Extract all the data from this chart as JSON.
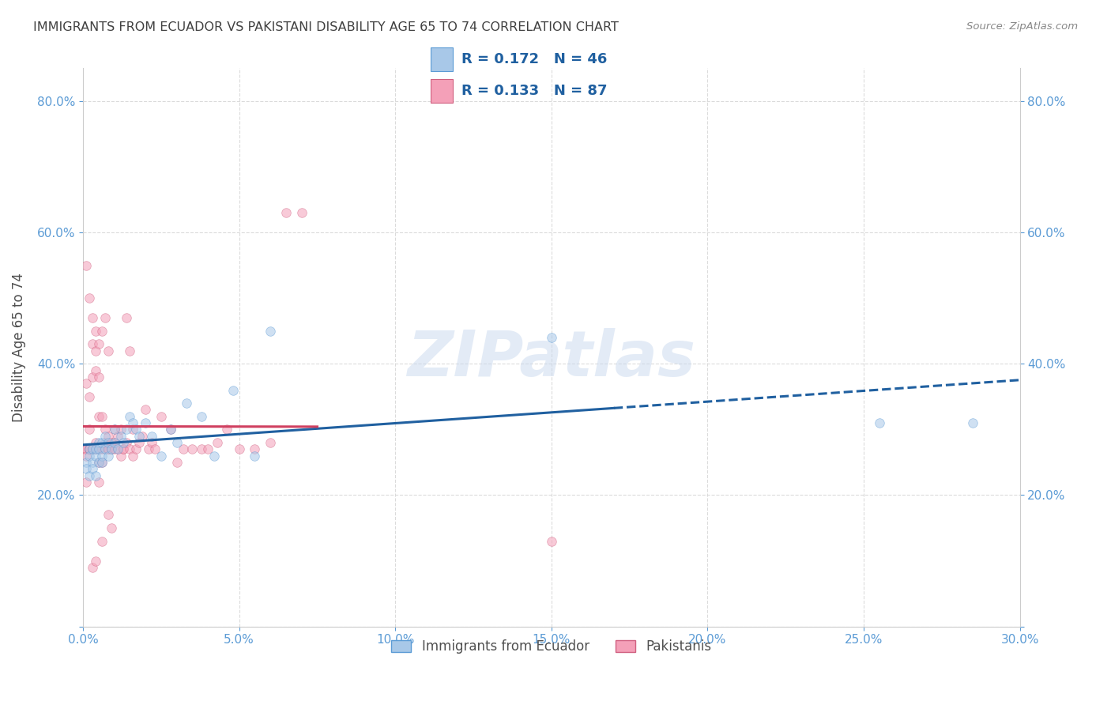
{
  "title": "IMMIGRANTS FROM ECUADOR VS PAKISTANI DISABILITY AGE 65 TO 74 CORRELATION CHART",
  "source": "Source: ZipAtlas.com",
  "ylabel": "Disability Age 65 to 74",
  "xlim": [
    0.0,
    0.3
  ],
  "ylim": [
    0.0,
    0.85
  ],
  "xticks": [
    0.0,
    0.05,
    0.1,
    0.15,
    0.2,
    0.25,
    0.3
  ],
  "yticks": [
    0.0,
    0.2,
    0.4,
    0.6,
    0.8
  ],
  "ecuador_color": "#a8c8e8",
  "pakistan_color": "#f4a0b8",
  "ecuador_edge": "#5b9bd5",
  "pakistan_edge": "#d06080",
  "trend_ecuador_color": "#2060a0",
  "trend_pakistan_color": "#d04060",
  "background_color": "#ffffff",
  "grid_color": "#d8d8d8",
  "title_color": "#404040",
  "axis_label_color": "#505050",
  "tick_color": "#5b9bd5",
  "legend_text_color": "#2060a0",
  "marker_size": 70,
  "marker_alpha": 0.55,
  "watermark_text": "ZIPatlas",
  "watermark_color": "#c8d8ee",
  "ecuador_x": [
    0.001,
    0.001,
    0.002,
    0.002,
    0.002,
    0.003,
    0.003,
    0.003,
    0.004,
    0.004,
    0.004,
    0.005,
    0.005,
    0.005,
    0.006,
    0.006,
    0.006,
    0.007,
    0.007,
    0.008,
    0.008,
    0.009,
    0.01,
    0.01,
    0.011,
    0.012,
    0.013,
    0.014,
    0.015,
    0.016,
    0.017,
    0.018,
    0.02,
    0.022,
    0.025,
    0.028,
    0.03,
    0.033,
    0.038,
    0.042,
    0.048,
    0.055,
    0.06,
    0.15,
    0.255,
    0.285
  ],
  "ecuador_y": [
    0.25,
    0.24,
    0.27,
    0.23,
    0.26,
    0.25,
    0.27,
    0.24,
    0.26,
    0.23,
    0.27,
    0.28,
    0.25,
    0.27,
    0.26,
    0.28,
    0.25,
    0.29,
    0.27,
    0.28,
    0.26,
    0.27,
    0.28,
    0.3,
    0.27,
    0.29,
    0.28,
    0.3,
    0.32,
    0.31,
    0.3,
    0.29,
    0.31,
    0.29,
    0.26,
    0.3,
    0.28,
    0.34,
    0.32,
    0.26,
    0.36,
    0.26,
    0.45,
    0.44,
    0.31,
    0.31
  ],
  "pakistan_x": [
    0.0005,
    0.001,
    0.001,
    0.001,
    0.001,
    0.001,
    0.002,
    0.002,
    0.002,
    0.002,
    0.002,
    0.002,
    0.003,
    0.003,
    0.003,
    0.003,
    0.003,
    0.003,
    0.004,
    0.004,
    0.004,
    0.004,
    0.004,
    0.005,
    0.005,
    0.005,
    0.005,
    0.005,
    0.005,
    0.006,
    0.006,
    0.006,
    0.006,
    0.007,
    0.007,
    0.007,
    0.007,
    0.008,
    0.008,
    0.008,
    0.008,
    0.009,
    0.009,
    0.009,
    0.01,
    0.01,
    0.01,
    0.011,
    0.011,
    0.012,
    0.012,
    0.013,
    0.013,
    0.014,
    0.014,
    0.015,
    0.015,
    0.016,
    0.016,
    0.017,
    0.018,
    0.019,
    0.02,
    0.021,
    0.022,
    0.023,
    0.025,
    0.028,
    0.03,
    0.032,
    0.035,
    0.038,
    0.04,
    0.043,
    0.046,
    0.05,
    0.055,
    0.06,
    0.065,
    0.07,
    0.003,
    0.004,
    0.005,
    0.006,
    0.008,
    0.009,
    0.15
  ],
  "pakistan_y": [
    0.27,
    0.27,
    0.55,
    0.37,
    0.26,
    0.22,
    0.27,
    0.5,
    0.27,
    0.35,
    0.27,
    0.3,
    0.47,
    0.27,
    0.43,
    0.27,
    0.38,
    0.27,
    0.45,
    0.42,
    0.27,
    0.28,
    0.39,
    0.43,
    0.38,
    0.27,
    0.32,
    0.25,
    0.27,
    0.32,
    0.25,
    0.27,
    0.45,
    0.3,
    0.47,
    0.27,
    0.28,
    0.29,
    0.27,
    0.42,
    0.27,
    0.27,
    0.28,
    0.27,
    0.3,
    0.27,
    0.28,
    0.29,
    0.27,
    0.26,
    0.3,
    0.27,
    0.27,
    0.28,
    0.47,
    0.42,
    0.27,
    0.26,
    0.3,
    0.27,
    0.28,
    0.29,
    0.33,
    0.27,
    0.28,
    0.27,
    0.32,
    0.3,
    0.25,
    0.27,
    0.27,
    0.27,
    0.27,
    0.28,
    0.3,
    0.27,
    0.27,
    0.28,
    0.63,
    0.63,
    0.09,
    0.1,
    0.22,
    0.13,
    0.17,
    0.15,
    0.13
  ]
}
